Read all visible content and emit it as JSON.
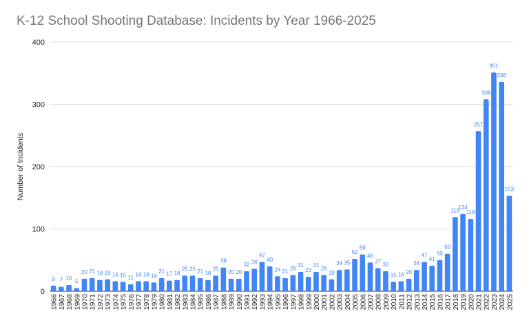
{
  "chart_data": {
    "type": "bar",
    "title": "K-12 School Shooting Database: Incidents by Year 1966-2025",
    "xlabel": "",
    "ylabel": "Number of Incidents",
    "ylim": [
      0,
      400
    ],
    "yticks": [
      0,
      100,
      200,
      300,
      400
    ],
    "grid": true,
    "bar_color": "#4285f4",
    "label_color": "#4285f4",
    "categories": [
      "1966",
      "1967",
      "1968",
      "1969",
      "1970",
      "1971",
      "1972",
      "1973",
      "1974",
      "1975",
      "1976",
      "1977",
      "1978",
      "1979",
      "1980",
      "1981",
      "1982",
      "1983",
      "1984",
      "1985",
      "1986",
      "1987",
      "1988",
      "1989",
      "1990",
      "1991",
      "1992",
      "1993",
      "1994",
      "1995",
      "1996",
      "1997",
      "1998",
      "1999",
      "2000",
      "2001",
      "2002",
      "2003",
      "2004",
      "2005",
      "2006",
      "2007",
      "2008",
      "2009",
      "2010",
      "2011",
      "2012",
      "2013",
      "2014",
      "2015",
      "2016",
      "2017",
      "2018",
      "2019",
      "2020",
      "2021",
      "2022",
      "2023",
      "2024",
      "2025"
    ],
    "values": [
      9,
      7,
      10,
      5,
      20,
      21,
      18,
      19,
      16,
      15,
      11,
      16,
      16,
      14,
      21,
      17,
      18,
      25,
      25,
      21,
      18,
      25,
      38,
      20,
      20,
      32,
      36,
      47,
      40,
      24,
      21,
      26,
      31,
      23,
      31,
      26,
      19,
      34,
      35,
      52,
      59,
      46,
      37,
      32,
      15,
      16,
      20,
      34,
      47,
      41,
      50,
      60,
      119,
      124,
      116,
      257,
      308,
      351,
      336,
      153
    ]
  }
}
